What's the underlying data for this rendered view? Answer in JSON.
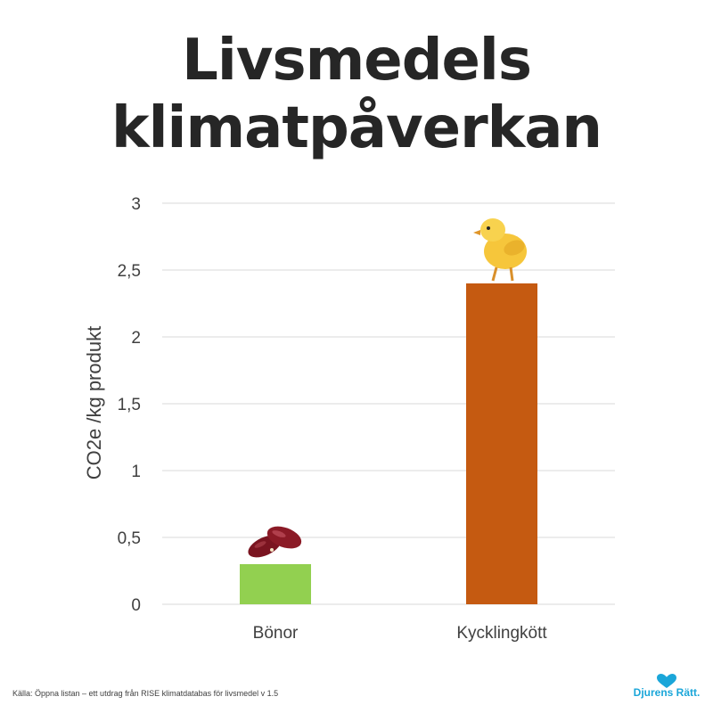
{
  "title": {
    "line1": "Livsmedels",
    "line2": "klimatpåverkan"
  },
  "chart_data": {
    "type": "bar",
    "categories": [
      "Bönor",
      "Kycklingkött"
    ],
    "values": [
      0.3,
      2.4
    ],
    "colors": [
      "#92d050",
      "#c55a11"
    ],
    "ylabel": "CO2e /kg produkt",
    "xlabel": "",
    "ylim": [
      0,
      3
    ],
    "yticks": [
      0,
      0.5,
      1,
      1.5,
      2,
      2.5,
      3
    ],
    "ytick_labels": [
      "0",
      "0,5",
      "1",
      "1,5",
      "2",
      "2,5",
      "3"
    ],
    "grid": true,
    "gridline_color": "#d9d9d9",
    "bar_icons": [
      "kidney-beans",
      "chick"
    ]
  },
  "footer": {
    "source": "Källa: Öppna listan – ett utdrag från RISE klimatdatabas för livsmedel v 1.5",
    "logo_text": "Djurens Rätt.",
    "logo_color": "#1aa6d9"
  }
}
